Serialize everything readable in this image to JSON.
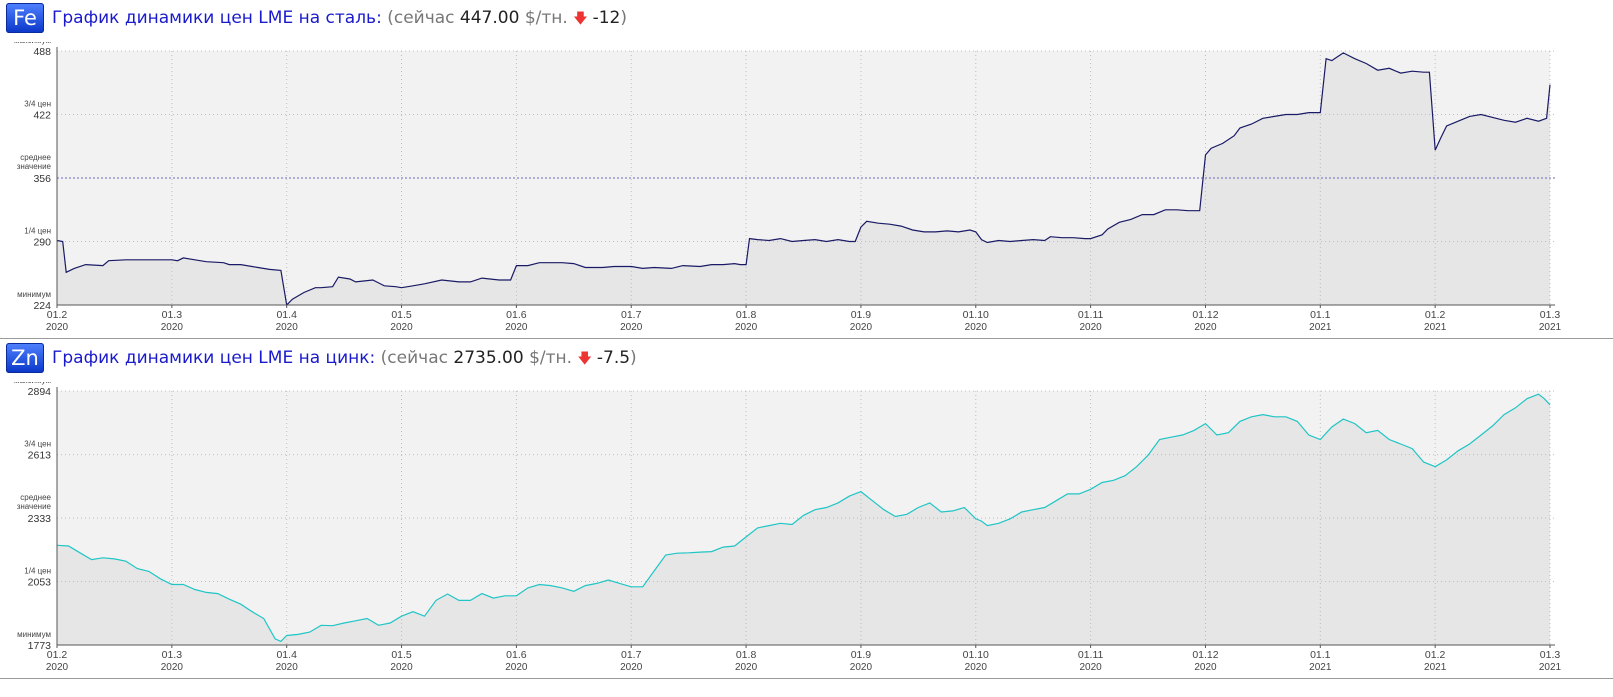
{
  "chart_data": [
    {
      "type": "line",
      "symbol": "Fe",
      "title": "График динамики цен LME на сталь:",
      "status": {
        "prefix": "(сейчас",
        "price": "447.00",
        "unit": "$/тн.",
        "change": "-12",
        "suffix": ")"
      },
      "color": "#1a1a66",
      "ylim": [
        224,
        488
      ],
      "ticks": [
        {
          "label": "максимум",
          "value": "488"
        },
        {
          "label": "3/4 цен",
          "value": "422"
        },
        {
          "label": "среднее значение",
          "value": "356"
        },
        {
          "label": "1/4 цен",
          "value": "290"
        },
        {
          "label": "минимум",
          "value": "224"
        }
      ],
      "mean": 356,
      "xlim": [
        0,
        13
      ],
      "x_ticks": [
        {
          "top": "01.2",
          "bottom": "2020",
          "x": 0
        },
        {
          "top": "01.3",
          "bottom": "2020",
          "x": 1
        },
        {
          "top": "01.4",
          "bottom": "2020",
          "x": 2
        },
        {
          "top": "01.5",
          "bottom": "2020",
          "x": 3
        },
        {
          "top": "01.6",
          "bottom": "2020",
          "x": 4
        },
        {
          "top": "01.7",
          "bottom": "2020",
          "x": 5
        },
        {
          "top": "01.8",
          "bottom": "2020",
          "x": 6
        },
        {
          "top": "01.9",
          "bottom": "2020",
          "x": 7
        },
        {
          "top": "01.10",
          "bottom": "2020",
          "x": 8
        },
        {
          "top": "01.11",
          "bottom": "2020",
          "x": 9
        },
        {
          "top": "01.12",
          "bottom": "2020",
          "x": 10
        },
        {
          "top": "01.1",
          "bottom": "2021",
          "x": 11
        },
        {
          "top": "01.2",
          "bottom": "2021",
          "x": 12
        },
        {
          "top": "01.3",
          "bottom": "2021",
          "x": 13
        }
      ],
      "points": [
        [
          0,
          291
        ],
        [
          0.05,
          290
        ],
        [
          0.08,
          258
        ],
        [
          0.15,
          262
        ],
        [
          0.25,
          266
        ],
        [
          0.4,
          265
        ],
        [
          0.45,
          270
        ],
        [
          0.6,
          271
        ],
        [
          0.8,
          271
        ],
        [
          1.0,
          271
        ],
        [
          1.05,
          270
        ],
        [
          1.1,
          273
        ],
        [
          1.2,
          271
        ],
        [
          1.3,
          269
        ],
        [
          1.45,
          268
        ],
        [
          1.5,
          266
        ],
        [
          1.6,
          266
        ],
        [
          1.75,
          263
        ],
        [
          1.85,
          261
        ],
        [
          1.95,
          260
        ],
        [
          2.0,
          224
        ],
        [
          2.05,
          230
        ],
        [
          2.15,
          237
        ],
        [
          2.25,
          242
        ],
        [
          2.3,
          242
        ],
        [
          2.4,
          243
        ],
        [
          2.45,
          253
        ],
        [
          2.55,
          251
        ],
        [
          2.6,
          248
        ],
        [
          2.75,
          250
        ],
        [
          2.85,
          244
        ],
        [
          2.95,
          243
        ],
        [
          3.0,
          242
        ],
        [
          3.1,
          244
        ],
        [
          3.2,
          246
        ],
        [
          3.35,
          250
        ],
        [
          3.5,
          248
        ],
        [
          3.6,
          248
        ],
        [
          3.7,
          252
        ],
        [
          3.85,
          250
        ],
        [
          3.95,
          250
        ],
        [
          4.0,
          265
        ],
        [
          4.1,
          265
        ],
        [
          4.2,
          268
        ],
        [
          4.4,
          268
        ],
        [
          4.5,
          267
        ],
        [
          4.6,
          263
        ],
        [
          4.75,
          263
        ],
        [
          4.85,
          264
        ],
        [
          5.0,
          264
        ],
        [
          5.1,
          262
        ],
        [
          5.2,
          263
        ],
        [
          5.35,
          262
        ],
        [
          5.45,
          265
        ],
        [
          5.6,
          264
        ],
        [
          5.7,
          266
        ],
        [
          5.8,
          266
        ],
        [
          5.9,
          267
        ],
        [
          5.95,
          266
        ],
        [
          6.0,
          266
        ],
        [
          6.03,
          293
        ],
        [
          6.1,
          292
        ],
        [
          6.2,
          291
        ],
        [
          6.3,
          293
        ],
        [
          6.4,
          290
        ],
        [
          6.5,
          291
        ],
        [
          6.6,
          292
        ],
        [
          6.7,
          290
        ],
        [
          6.8,
          292
        ],
        [
          6.9,
          290
        ],
        [
          6.95,
          290
        ],
        [
          7.0,
          305
        ],
        [
          7.05,
          311
        ],
        [
          7.15,
          309
        ],
        [
          7.25,
          308
        ],
        [
          7.35,
          306
        ],
        [
          7.45,
          302
        ],
        [
          7.55,
          300
        ],
        [
          7.65,
          300
        ],
        [
          7.75,
          301
        ],
        [
          7.85,
          300
        ],
        [
          7.95,
          302
        ],
        [
          8.0,
          300
        ],
        [
          8.05,
          292
        ],
        [
          8.1,
          289
        ],
        [
          8.2,
          291
        ],
        [
          8.3,
          290
        ],
        [
          8.4,
          291
        ],
        [
          8.5,
          292
        ],
        [
          8.6,
          291
        ],
        [
          8.65,
          295
        ],
        [
          8.75,
          294
        ],
        [
          8.85,
          294
        ],
        [
          8.95,
          293
        ],
        [
          9.0,
          293
        ],
        [
          9.1,
          297
        ],
        [
          9.15,
          303
        ],
        [
          9.25,
          310
        ],
        [
          9.35,
          313
        ],
        [
          9.45,
          318
        ],
        [
          9.55,
          318
        ],
        [
          9.65,
          323
        ],
        [
          9.75,
          323
        ],
        [
          9.85,
          322
        ],
        [
          9.95,
          322
        ],
        [
          10.0,
          380
        ],
        [
          10.05,
          387
        ],
        [
          10.15,
          392
        ],
        [
          10.25,
          400
        ],
        [
          10.3,
          408
        ],
        [
          10.4,
          412
        ],
        [
          10.5,
          418
        ],
        [
          10.6,
          420
        ],
        [
          10.7,
          422
        ],
        [
          10.8,
          422
        ],
        [
          10.9,
          424
        ],
        [
          11.0,
          424
        ],
        [
          11.05,
          480
        ],
        [
          11.1,
          478
        ],
        [
          11.15,
          482
        ],
        [
          11.2,
          486
        ],
        [
          11.3,
          480
        ],
        [
          11.4,
          475
        ],
        [
          11.5,
          468
        ],
        [
          11.6,
          470
        ],
        [
          11.7,
          465
        ],
        [
          11.8,
          467
        ],
        [
          11.9,
          466
        ],
        [
          11.95,
          466
        ],
        [
          12.0,
          385
        ],
        [
          12.05,
          398
        ],
        [
          12.1,
          410
        ],
        [
          12.2,
          415
        ],
        [
          12.3,
          420
        ],
        [
          12.4,
          422
        ],
        [
          12.5,
          419
        ],
        [
          12.6,
          416
        ],
        [
          12.7,
          414
        ],
        [
          12.8,
          418
        ],
        [
          12.9,
          415
        ],
        [
          12.97,
          418
        ],
        [
          13.0,
          453
        ]
      ]
    },
    {
      "type": "line",
      "symbol": "Zn",
      "title": "График динамики цен LME на цинк:",
      "status": {
        "prefix": "(сейчас",
        "price": "2735.00",
        "unit": "$/тн.",
        "change": "-7.5",
        "suffix": ")"
      },
      "color": "#20c5c5",
      "ylim": [
        1773,
        2894
      ],
      "ticks": [
        {
          "label": "максимум",
          "value": "2894"
        },
        {
          "label": "3/4 цен",
          "value": "2613"
        },
        {
          "label": "среднее значение",
          "value": "2333"
        },
        {
          "label": "1/4 цен",
          "value": "2053"
        },
        {
          "label": "минимум",
          "value": "1773"
        }
      ],
      "xlim": [
        0,
        13
      ],
      "x_ticks": [
        {
          "top": "01.2",
          "bottom": "2020",
          "x": 0
        },
        {
          "top": "01.3",
          "bottom": "2020",
          "x": 1
        },
        {
          "top": "01.4",
          "bottom": "2020",
          "x": 2
        },
        {
          "top": "01.5",
          "bottom": "2020",
          "x": 3
        },
        {
          "top": "01.6",
          "bottom": "2020",
          "x": 4
        },
        {
          "top": "01.7",
          "bottom": "2020",
          "x": 5
        },
        {
          "top": "01.8",
          "bottom": "2020",
          "x": 6
        },
        {
          "top": "01.9",
          "bottom": "2020",
          "x": 7
        },
        {
          "top": "01.10",
          "bottom": "2020",
          "x": 8
        },
        {
          "top": "01.11",
          "bottom": "2020",
          "x": 9
        },
        {
          "top": "01.12",
          "bottom": "2020",
          "x": 10
        },
        {
          "top": "01.1",
          "bottom": "2021",
          "x": 11
        },
        {
          "top": "01.2",
          "bottom": "2021",
          "x": 12
        },
        {
          "top": "01.3",
          "bottom": "2021",
          "x": 13
        }
      ],
      "points": [
        [
          0,
          2213
        ],
        [
          0.1,
          2210
        ],
        [
          0.2,
          2180
        ],
        [
          0.3,
          2150
        ],
        [
          0.4,
          2158
        ],
        [
          0.5,
          2153
        ],
        [
          0.6,
          2143
        ],
        [
          0.7,
          2110
        ],
        [
          0.8,
          2098
        ],
        [
          0.9,
          2065
        ],
        [
          1.0,
          2040
        ],
        [
          1.1,
          2040
        ],
        [
          1.2,
          2018
        ],
        [
          1.3,
          2005
        ],
        [
          1.4,
          2000
        ],
        [
          1.5,
          1975
        ],
        [
          1.6,
          1953
        ],
        [
          1.7,
          1920
        ],
        [
          1.8,
          1890
        ],
        [
          1.9,
          1800
        ],
        [
          1.95,
          1789
        ],
        [
          2.0,
          1815
        ],
        [
          2.1,
          1820
        ],
        [
          2.2,
          1830
        ],
        [
          2.3,
          1860
        ],
        [
          2.4,
          1858
        ],
        [
          2.5,
          1870
        ],
        [
          2.6,
          1880
        ],
        [
          2.7,
          1890
        ],
        [
          2.8,
          1860
        ],
        [
          2.9,
          1870
        ],
        [
          3.0,
          1900
        ],
        [
          3.1,
          1920
        ],
        [
          3.2,
          1900
        ],
        [
          3.3,
          1970
        ],
        [
          3.4,
          1998
        ],
        [
          3.5,
          1970
        ],
        [
          3.6,
          1970
        ],
        [
          3.7,
          2000
        ],
        [
          3.8,
          1980
        ],
        [
          3.9,
          1990
        ],
        [
          4.0,
          1990
        ],
        [
          4.1,
          2025
        ],
        [
          4.2,
          2040
        ],
        [
          4.3,
          2035
        ],
        [
          4.4,
          2025
        ],
        [
          4.5,
          2010
        ],
        [
          4.6,
          2035
        ],
        [
          4.7,
          2045
        ],
        [
          4.8,
          2060
        ],
        [
          4.9,
          2045
        ],
        [
          5.0,
          2030
        ],
        [
          5.1,
          2030
        ],
        [
          5.2,
          2100
        ],
        [
          5.3,
          2170
        ],
        [
          5.4,
          2178
        ],
        [
          5.5,
          2180
        ],
        [
          5.6,
          2183
        ],
        [
          5.7,
          2185
        ],
        [
          5.8,
          2205
        ],
        [
          5.9,
          2210
        ],
        [
          6.0,
          2250
        ],
        [
          6.1,
          2290
        ],
        [
          6.2,
          2300
        ],
        [
          6.3,
          2310
        ],
        [
          6.4,
          2305
        ],
        [
          6.5,
          2345
        ],
        [
          6.6,
          2370
        ],
        [
          6.7,
          2380
        ],
        [
          6.8,
          2400
        ],
        [
          6.9,
          2430
        ],
        [
          7.0,
          2450
        ],
        [
          7.1,
          2410
        ],
        [
          7.2,
          2370
        ],
        [
          7.3,
          2340
        ],
        [
          7.4,
          2350
        ],
        [
          7.5,
          2380
        ],
        [
          7.6,
          2400
        ],
        [
          7.7,
          2360
        ],
        [
          7.8,
          2365
        ],
        [
          7.9,
          2380
        ],
        [
          8.0,
          2330
        ],
        [
          8.05,
          2320
        ],
        [
          8.1,
          2300
        ],
        [
          8.2,
          2310
        ],
        [
          8.3,
          2330
        ],
        [
          8.4,
          2360
        ],
        [
          8.5,
          2370
        ],
        [
          8.6,
          2380
        ],
        [
          8.7,
          2410
        ],
        [
          8.8,
          2440
        ],
        [
          8.9,
          2440
        ],
        [
          9.0,
          2460
        ],
        [
          9.1,
          2490
        ],
        [
          9.2,
          2500
        ],
        [
          9.3,
          2520
        ],
        [
          9.4,
          2560
        ],
        [
          9.5,
          2610
        ],
        [
          9.6,
          2680
        ],
        [
          9.7,
          2690
        ],
        [
          9.8,
          2700
        ],
        [
          9.9,
          2720
        ],
        [
          10.0,
          2750
        ],
        [
          10.1,
          2700
        ],
        [
          10.2,
          2710
        ],
        [
          10.3,
          2760
        ],
        [
          10.4,
          2780
        ],
        [
          10.5,
          2790
        ],
        [
          10.6,
          2780
        ],
        [
          10.7,
          2780
        ],
        [
          10.8,
          2760
        ],
        [
          10.9,
          2700
        ],
        [
          11.0,
          2680
        ],
        [
          11.1,
          2735
        ],
        [
          11.2,
          2770
        ],
        [
          11.3,
          2750
        ],
        [
          11.4,
          2710
        ],
        [
          11.5,
          2720
        ],
        [
          11.6,
          2680
        ],
        [
          11.7,
          2660
        ],
        [
          11.8,
          2640
        ],
        [
          11.9,
          2580
        ],
        [
          12.0,
          2560
        ],
        [
          12.1,
          2590
        ],
        [
          12.2,
          2630
        ],
        [
          12.3,
          2660
        ],
        [
          12.4,
          2700
        ],
        [
          12.5,
          2740
        ],
        [
          12.6,
          2790
        ],
        [
          12.7,
          2820
        ],
        [
          12.8,
          2860
        ],
        [
          12.9,
          2880
        ],
        [
          12.95,
          2860
        ],
        [
          13.0,
          2833
        ]
      ]
    }
  ]
}
